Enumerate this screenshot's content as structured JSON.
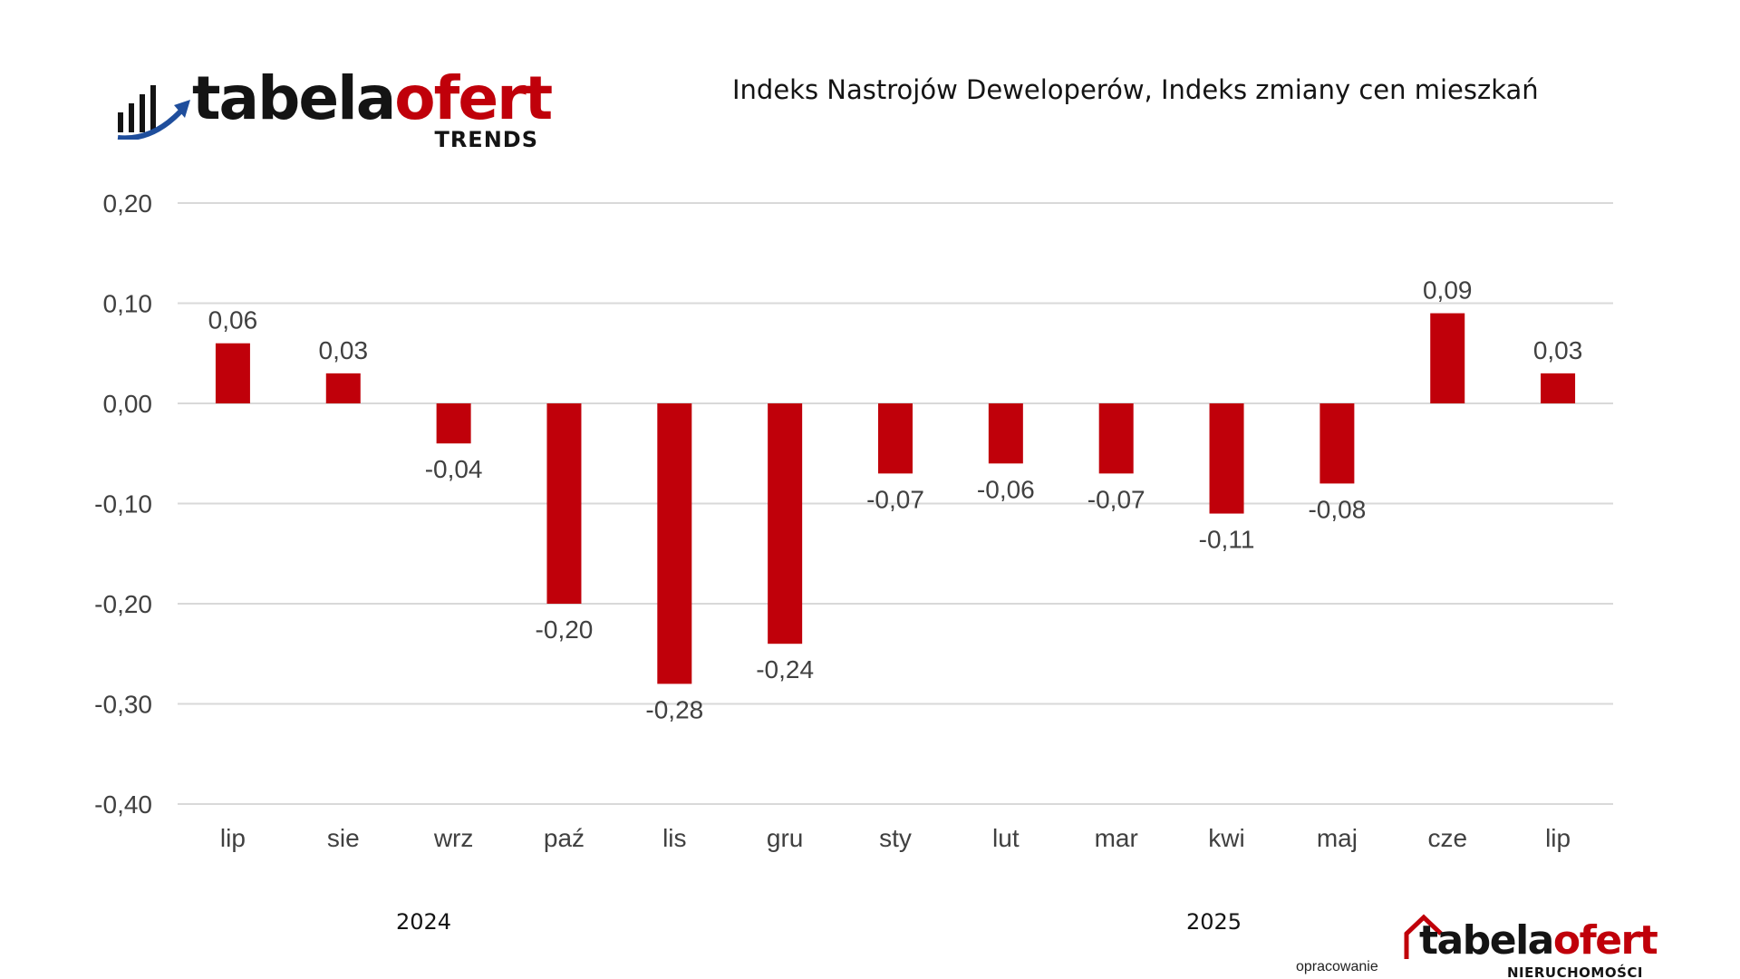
{
  "logo_top": {
    "word_dark": "tabela",
    "word_red": "ofert",
    "sub": "TRENDS",
    "icon": "bar-chart-arrow-icon"
  },
  "title": "Indeks Nastrojów Deweloperów, Indeks zmiany cen mieszkań",
  "years": {
    "first": "2024",
    "second": "2025"
  },
  "credit": {
    "label": "opracowanie",
    "logo_word_dark": "tabela",
    "logo_word_red": "ofert",
    "logo_sub": "NIERUCHOMOŚCI",
    "icon": "house-outline-icon"
  },
  "colors": {
    "bar": "#c0000a",
    "grid": "#d9d9d9",
    "text": "#404040",
    "brand_red": "#c0000a",
    "brand_blue": "#1f4e9c"
  },
  "chart_data": {
    "type": "bar",
    "categories": [
      "lip",
      "sie",
      "wrz",
      "paź",
      "lis",
      "gru",
      "sty",
      "lut",
      "mar",
      "kwi",
      "maj",
      "cze",
      "lip"
    ],
    "values": [
      0.06,
      0.03,
      -0.04,
      -0.2,
      -0.28,
      -0.24,
      -0.07,
      -0.06,
      -0.07,
      -0.11,
      -0.08,
      0.09,
      0.03
    ],
    "value_labels": [
      "0,06",
      "0,03",
      "-0,04",
      "-0,20",
      "-0,28",
      "-0,24",
      "-0,07",
      "-0,06",
      "-0,07",
      "-0,11",
      "-0,08",
      "0,09",
      "0,03"
    ],
    "yticks": [
      0.2,
      0.1,
      0.0,
      -0.1,
      -0.2,
      -0.3,
      -0.4
    ],
    "ytick_labels": [
      "0,20",
      "0,10",
      "0,00",
      "-0,10",
      "-0,20",
      "-0,30",
      "-0,40"
    ],
    "ylim": [
      -0.4,
      0.2
    ],
    "grid": true,
    "legend": "none"
  }
}
